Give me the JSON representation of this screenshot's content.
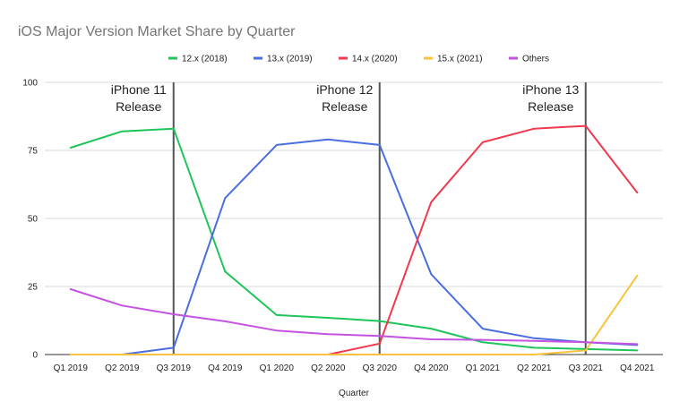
{
  "chart_data": {
    "type": "line",
    "title": "iOS Major Version Market Share by Quarter",
    "xlabel": "Quarter",
    "ylabel": "",
    "ylim": [
      0,
      100
    ],
    "yticks": [
      0,
      25,
      50,
      75,
      100
    ],
    "grid": true,
    "legend_position": "top",
    "categories": [
      "Q1 2019",
      "Q2 2019",
      "Q3 2019",
      "Q4 2019",
      "Q1 2020",
      "Q2 2020",
      "Q3 2020",
      "Q4 2020",
      "Q1 2021",
      "Q2 2021",
      "Q3 2021",
      "Q4 2021"
    ],
    "series": [
      {
        "name": "12.x (2018)",
        "color": "#1fc55a",
        "values": [
          76,
          82,
          83,
          30.5,
          14.5,
          13.5,
          12.3,
          9.5,
          4.5,
          2.5,
          2,
          1.5
        ]
      },
      {
        "name": "13.x (2019)",
        "color": "#4a6ee0",
        "values": [
          null,
          0,
          2.5,
          57.5,
          77,
          79,
          77,
          29.5,
          9.5,
          6,
          4.5,
          3.5
        ]
      },
      {
        "name": "14.x (2020)",
        "color": "#f0384e",
        "values": [
          null,
          null,
          null,
          null,
          null,
          0,
          4,
          56,
          78,
          83,
          84,
          59.5
        ]
      },
      {
        "name": "15.x (2021)",
        "color": "#f9c23c",
        "values": [
          0,
          0,
          0,
          0,
          0,
          0,
          0,
          0,
          0,
          0,
          1.5,
          29
        ]
      },
      {
        "name": "Others",
        "color": "#c353e0",
        "values": [
          24,
          18,
          14.8,
          12.2,
          8.8,
          7.5,
          6.8,
          5.6,
          5.4,
          5,
          4.5,
          3.8
        ]
      }
    ],
    "annotations": [
      {
        "category": "Q3 2019",
        "lines": [
          "iPhone 11",
          "Release"
        ]
      },
      {
        "category": "Q3 2020",
        "lines": [
          "iPhone 12",
          "Release"
        ]
      },
      {
        "category": "Q3 2021",
        "lines": [
          "iPhone 13",
          "Release"
        ]
      }
    ]
  }
}
